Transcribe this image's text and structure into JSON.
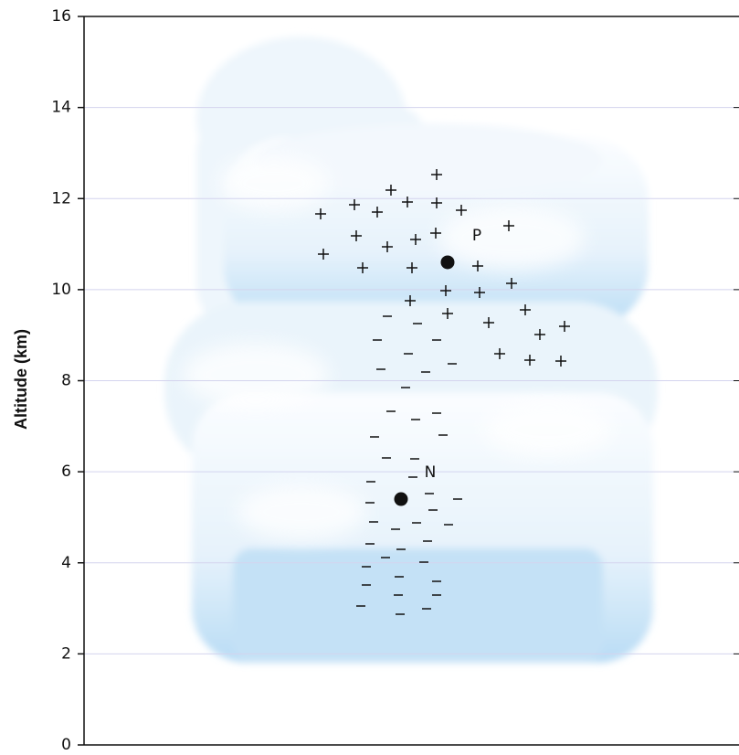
{
  "chart_data": {
    "type": "scatter",
    "ylabel": "Altitude (km)",
    "ylim": [
      0,
      16
    ],
    "yticks": [
      0,
      2,
      4,
      6,
      8,
      10,
      12,
      14,
      16
    ],
    "grid": true,
    "points": [
      {
        "label": "P",
        "y": 10.6
      },
      {
        "label": "N",
        "y": 5.4
      }
    ]
  }
}
